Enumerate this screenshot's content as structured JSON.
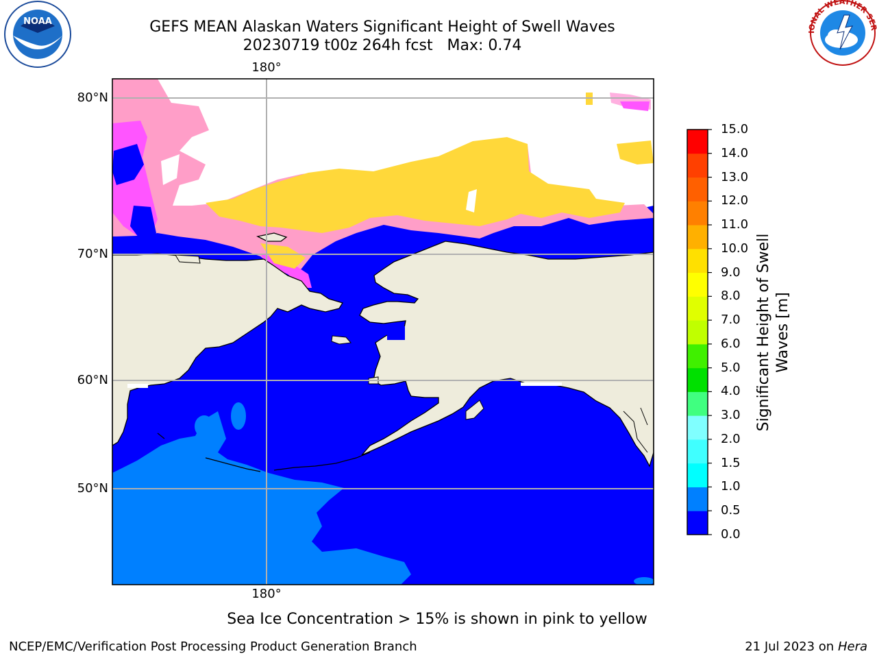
{
  "header": {
    "title_line1": "GEFS MEAN Alaskan Waters Significant Height of Swell Waves",
    "title_line2": "20230719 t00z 264h fcst   Max: 0.74"
  },
  "logos": {
    "left": {
      "name": "NOAA",
      "text": "NOAA",
      "ring_text": "NATIONAL OCEANIC AND ATMOSPHERIC ADMINISTRATION · U.S. DEPARTMENT OF COMMERCE"
    },
    "right": {
      "name": "National Weather Service",
      "ring_text": "NATIONAL WEATHER SERVICE"
    }
  },
  "map": {
    "lat_labels": [
      "80°N",
      "70°N",
      "60°N",
      "50°N"
    ],
    "lon_label_top": "180°",
    "lon_label_bottom": "180°",
    "colors": {
      "ocean_low": "#0000ff",
      "ocean_mid": "#0080ff",
      "land": "#eeecdc",
      "ice_pink": "#ff55ff",
      "ice_yellow": "#ffd83a",
      "grid": "#b0b0b0"
    }
  },
  "colorbar": {
    "title_line1": "Significant Height of Swell",
    "title_line2": "Waves [m]",
    "ticks": [
      "15.0",
      "14.0",
      "13.0",
      "12.0",
      "11.0",
      "10.0",
      "9.0",
      "8.0",
      "7.0",
      "6.0",
      "5.0",
      "4.0",
      "3.0",
      "2.0",
      "1.5",
      "1.0",
      "0.5",
      "0.0"
    ],
    "colors_bottom_to_top": [
      "#0000ff",
      "#0080ff",
      "#00ffff",
      "#40ffff",
      "#80ffff",
      "#40ff80",
      "#00e000",
      "#40f000",
      "#c0ff00",
      "#e0ff00",
      "#ffff00",
      "#ffe000",
      "#ffb000",
      "#ff8000",
      "#ff6000",
      "#ff4000",
      "#ff0000"
    ]
  },
  "note": "Sea Ice Concentration > 15% is shown in pink to yellow",
  "footer": {
    "left": "NCEP/EMC/Verification Post Processing Product Generation Branch",
    "date": "21 Jul 2023 on ",
    "host": "Hera"
  }
}
